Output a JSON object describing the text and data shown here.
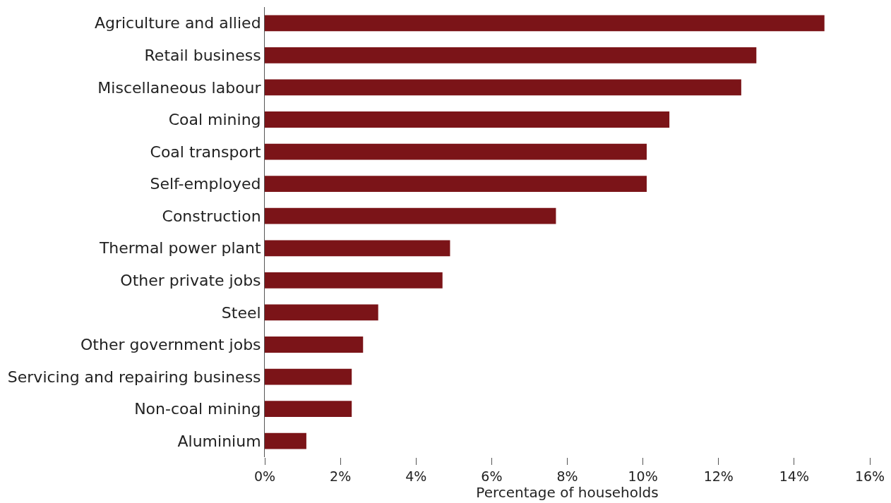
{
  "chart_data": {
    "type": "bar",
    "orientation": "horizontal",
    "xlabel": "Percentage of households",
    "categories": [
      "Agriculture and allied",
      "Retail business",
      "Miscellaneous labour",
      "Coal mining",
      "Coal transport",
      "Self-employed",
      "Construction",
      "Thermal power plant",
      "Other private jobs",
      "Steel",
      "Other government jobs",
      "Servicing and repairing business",
      "Non-coal mining",
      "Aluminium"
    ],
    "values": [
      14.8,
      13.0,
      12.6,
      10.7,
      10.1,
      10.1,
      7.7,
      4.9,
      4.7,
      3.0,
      2.6,
      2.3,
      2.3,
      1.1
    ],
    "color": "#7b1418",
    "xlim": [
      0,
      16
    ],
    "xticks": [
      {
        "value": 0,
        "label": "0%"
      },
      {
        "value": 2,
        "label": "2%"
      },
      {
        "value": 4,
        "label": "4%"
      },
      {
        "value": 6,
        "label": "6%"
      },
      {
        "value": 8,
        "label": "8%"
      },
      {
        "value": 10,
        "label": "10%"
      },
      {
        "value": 12,
        "label": "12%"
      },
      {
        "value": 14,
        "label": "14%"
      },
      {
        "value": 16,
        "label": "16%"
      }
    ],
    "grid": false
  }
}
